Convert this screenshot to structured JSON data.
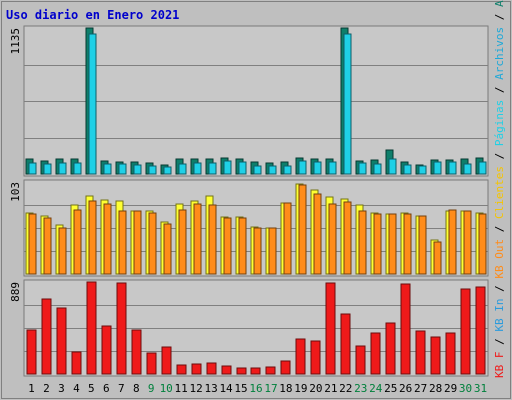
{
  "chart_data": {
    "type": "bar",
    "title": "Uso diario en Enero 2021",
    "categories": [
      "1",
      "2",
      "3",
      "4",
      "5",
      "6",
      "7",
      "8",
      "9",
      "10",
      "11",
      "12",
      "13",
      "14",
      "15",
      "16",
      "17",
      "18",
      "19",
      "20",
      "21",
      "22",
      "23",
      "24",
      "25",
      "26",
      "27",
      "28",
      "29",
      "30",
      "31"
    ],
    "weekend_days": [
      "9",
      "10",
      "16",
      "17",
      "23",
      "24",
      "30",
      "31"
    ],
    "panels": [
      {
        "id": "top",
        "ymax_label": "1135",
        "ymax": 1135,
        "series": [
          {
            "name": "Accesos",
            "color": "#0e7f6b",
            "values": [
              120,
              100,
              120,
              120,
              1135,
              100,
              95,
              95,
              85,
              70,
              115,
              120,
              115,
              125,
              115,
              95,
              85,
              90,
              125,
              115,
              115,
              1135,
              100,
              105,
              190,
              90,
              70,
              110,
              105,
              115,
              125
            ]
          },
          {
            "name": "Archivos",
            "color": "#1fd0e6",
            "values": [
              85,
              75,
              85,
              85,
              1085,
              75,
              75,
              70,
              65,
              55,
              80,
              85,
              85,
              100,
              95,
              65,
              60,
              65,
              100,
              90,
              90,
              1090,
              85,
              80,
              115,
              70,
              60,
              90,
              90,
              75,
              95
            ]
          },
          {
            "name": "Páginas",
            "color": "#1fd0e6",
            "values": []
          }
        ]
      },
      {
        "id": "middle",
        "ymax_label": "103",
        "ymax": 103,
        "series": [
          {
            "name": "Clientes",
            "color": "#ffff33",
            "values": [
              68,
              65,
              55,
              77,
              87,
              83,
              82,
              71,
              70,
              58,
              78,
              82,
              87,
              64,
              64,
              53,
              51,
              80,
              101,
              94,
              86,
              84,
              77,
              68,
              67,
              68,
              65,
              38,
              70,
              71,
              68
            ]
          },
          {
            "name": "KB Out",
            "color": "#ff8c1a",
            "values": [
              67,
              63,
              52,
              72,
              82,
              78,
              70,
              70,
              68,
              56,
              72,
              78,
              77,
              63,
              63,
              52,
              51,
              80,
              100,
              90,
              78,
              81,
              71,
              67,
              67,
              67,
              65,
              36,
              72,
              70,
              67
            ]
          }
        ]
      },
      {
        "id": "bottom",
        "ymax_label": "889",
        "ymax": 889,
        "series": [
          {
            "name": "KB In",
            "color": "#2b9bdc",
            "values": []
          },
          {
            "name": "KB F",
            "color": "#ef1a1a",
            "values": [
              430,
              720,
              640,
              210,
              889,
              460,
              880,
              430,
              200,
              260,
              90,
              100,
              110,
              80,
              60,
              55,
              65,
              130,
              340,
              320,
              880,
              580,
              270,
              400,
              490,
              870,
              420,
              360,
              400,
              820,
              840
            ]
          }
        ]
      }
    ],
    "legend_right": [
      {
        "label": "Accesos",
        "color": "#0e7f6b"
      },
      {
        "label": "Archivos",
        "color": "#1fa9d8"
      },
      {
        "label": "Páginas",
        "color": "#1fd0e6"
      },
      {
        "label": "Clientes",
        "color": "#f5c400"
      },
      {
        "label": "KB Out",
        "color": "#ff8c1a"
      },
      {
        "label": "KB In",
        "color": "#2b9bdc"
      },
      {
        "label": "KB F",
        "color": "#ef1a1a"
      }
    ],
    "colors": {
      "background": "#bfbfbf",
      "panel": "#c8c8c8",
      "title": "#0000cc",
      "weekday_label": "#000000",
      "weekend_label": "#00803c",
      "gridline": "#808080"
    }
  }
}
